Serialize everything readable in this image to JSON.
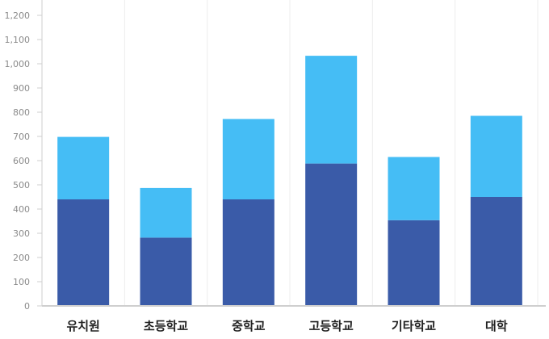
{
  "chart_data": {
    "type": "bar",
    "stacked": true,
    "categories": [
      "유치원",
      "초등학교",
      "중학교",
      "고등학교",
      "기타학교",
      "대학"
    ],
    "series": [
      {
        "color": "#3a5ba8",
        "values": [
          440,
          282,
          440,
          588,
          354,
          450
        ]
      },
      {
        "color": "#45bdf5",
        "values": [
          258,
          205,
          332,
          445,
          261,
          335
        ]
      }
    ],
    "yticks": [
      0,
      100,
      200,
      300,
      400,
      500,
      600,
      700,
      800,
      900,
      1000,
      1100,
      1200
    ],
    "ytick_labels": [
      "0",
      "100",
      "200",
      "300",
      "400",
      "500",
      "600",
      "700",
      "800",
      "900",
      "1,000",
      "1,100",
      "1,200"
    ],
    "ylim": [
      0,
      1200
    ],
    "grid": "vertical",
    "legend": "none",
    "title": "",
    "xlabel": "",
    "ylabel": ""
  }
}
